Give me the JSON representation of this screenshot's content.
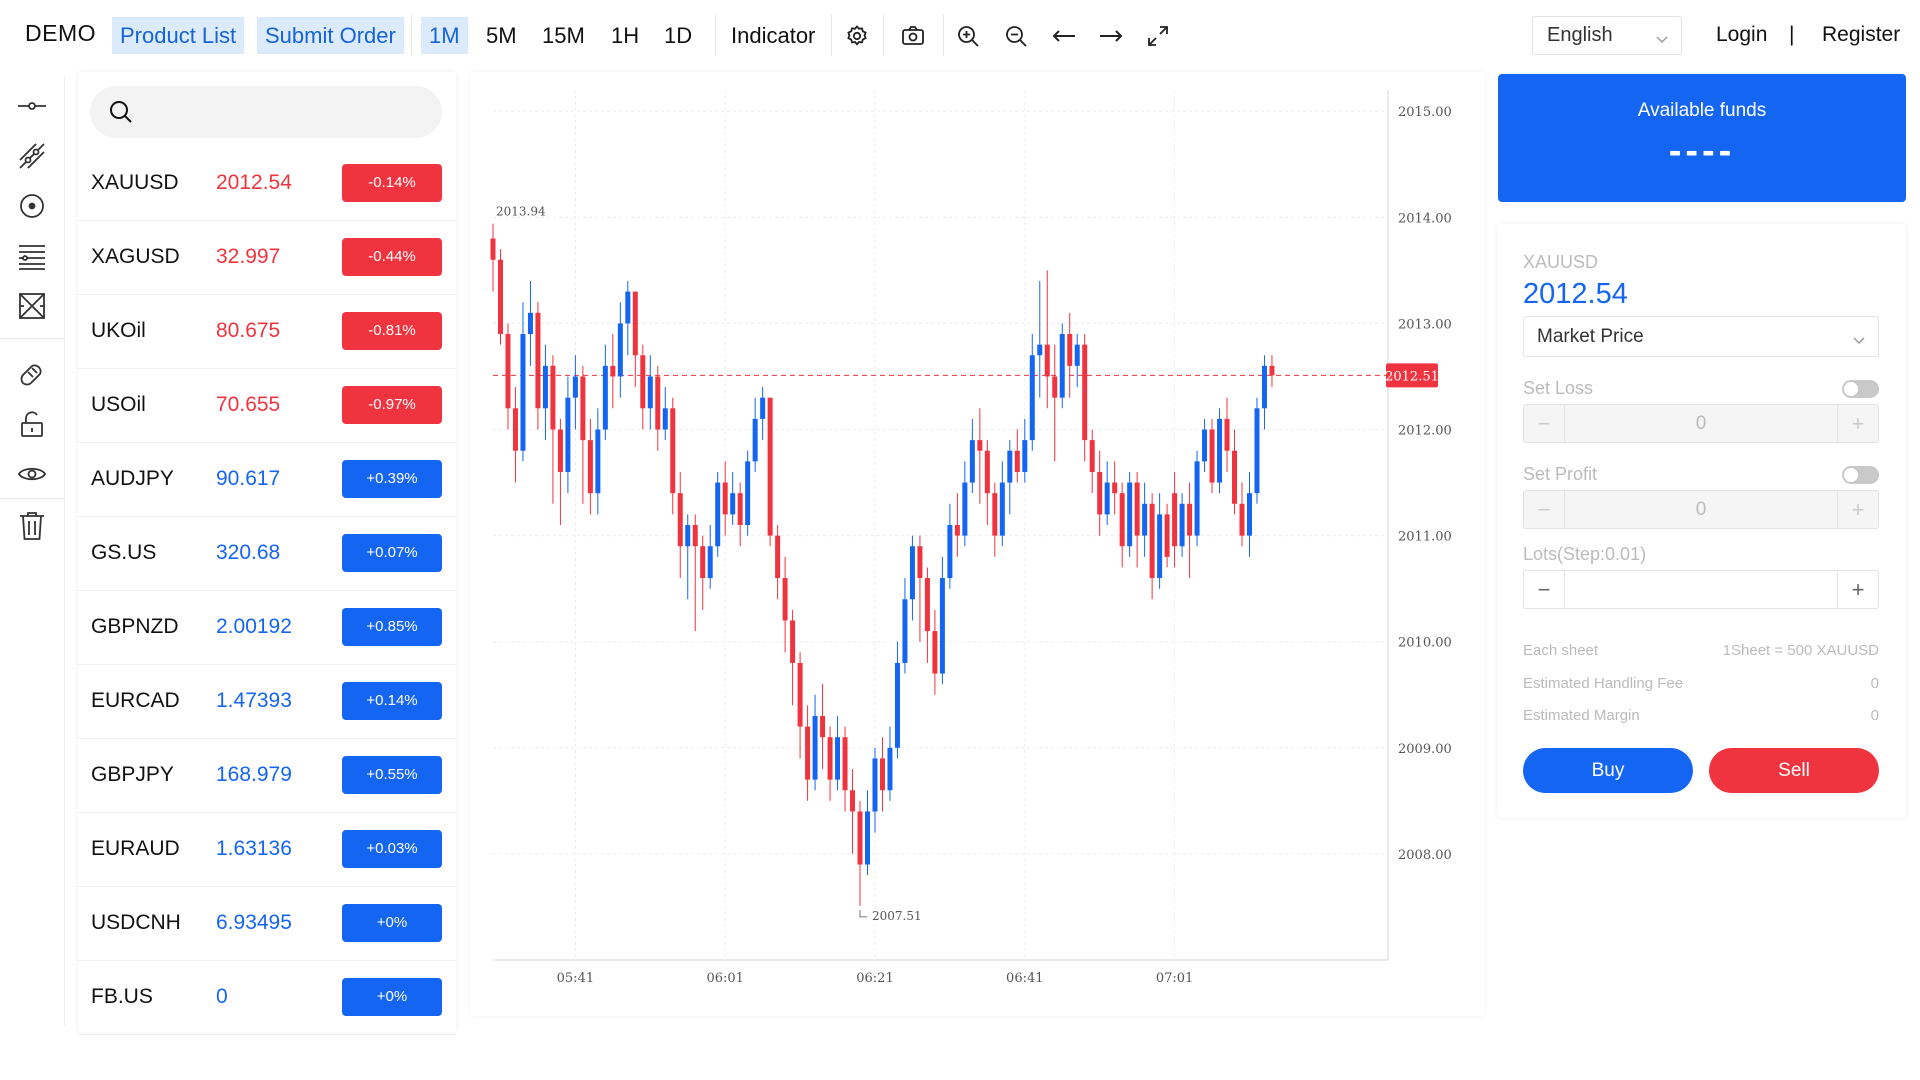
{
  "app": {
    "logo": "DEMO"
  },
  "toolbar": {
    "product_list": "Product List",
    "submit_order": "Submit Order",
    "intervals": [
      "1M",
      "5M",
      "15M",
      "1H",
      "1D"
    ],
    "active_interval": "1M",
    "indicator": "Indicator"
  },
  "header": {
    "language": "English",
    "login": "Login",
    "separator": "|",
    "register": "Register"
  },
  "products": [
    {
      "symbol": "XAUUSD",
      "price": "2012.54",
      "change": "-0.14%",
      "dir": "down"
    },
    {
      "symbol": "XAGUSD",
      "price": "32.997",
      "change": "-0.44%",
      "dir": "down"
    },
    {
      "symbol": "UKOil",
      "price": "80.675",
      "change": "-0.81%",
      "dir": "down"
    },
    {
      "symbol": "USOil",
      "price": "70.655",
      "change": "-0.97%",
      "dir": "down"
    },
    {
      "symbol": "AUDJPY",
      "price": "90.617",
      "change": "+0.39%",
      "dir": "up"
    },
    {
      "symbol": "GS.US",
      "price": "320.68",
      "change": "+0.07%",
      "dir": "up"
    },
    {
      "symbol": "GBPNZD",
      "price": "2.00192",
      "change": "+0.85%",
      "dir": "up"
    },
    {
      "symbol": "EURCAD",
      "price": "1.47393",
      "change": "+0.14%",
      "dir": "up"
    },
    {
      "symbol": "GBPJPY",
      "price": "168.979",
      "change": "+0.55%",
      "dir": "up"
    },
    {
      "symbol": "EURAUD",
      "price": "1.63136",
      "change": "+0.03%",
      "dir": "up"
    },
    {
      "symbol": "USDCNH",
      "price": "6.93495",
      "change": "+0%",
      "dir": "up"
    },
    {
      "symbol": "FB.US",
      "price": "0",
      "change": "+0%",
      "dir": "up"
    }
  ],
  "colors": {
    "up": "#1565f3",
    "down": "#f0343f",
    "accent": "#1565f3"
  },
  "chart_data": {
    "type": "candlestick",
    "ylim": [
      2007,
      2015.2
    ],
    "y_ticks": [
      "2015.00",
      "2014.00",
      "2013.00",
      "2012.00",
      "2011.00",
      "2010.00",
      "2009.00",
      "2008.00"
    ],
    "x_ticks": [
      "05:41",
      "06:01",
      "06:21",
      "06:41",
      "07:01"
    ],
    "x_tick_index": [
      11,
      31,
      51,
      71,
      91
    ],
    "last_price_label": "2012.51",
    "last_price": 2012.51,
    "high_label": "2013.94",
    "low_label": "2007.51",
    "candles": [
      [
        2013.8,
        2013.6,
        2013.94,
        2013.3
      ],
      [
        2013.6,
        2012.9,
        2013.7,
        2012.8
      ],
      [
        2012.9,
        2012.2,
        2013.0,
        2012.0
      ],
      [
        2012.2,
        2011.8,
        2012.4,
        2011.5
      ],
      [
        2011.8,
        2012.9,
        2013.2,
        2011.7
      ],
      [
        2012.9,
        2013.1,
        2013.4,
        2012.6
      ],
      [
        2013.1,
        2012.2,
        2013.2,
        2012.0
      ],
      [
        2012.2,
        2012.6,
        2012.8,
        2011.9
      ],
      [
        2012.6,
        2012.0,
        2012.7,
        2011.3
      ],
      [
        2012.0,
        2011.6,
        2012.1,
        2011.1
      ],
      [
        2011.6,
        2012.3,
        2012.5,
        2011.4
      ],
      [
        2012.3,
        2012.5,
        2012.7,
        2012.0
      ],
      [
        2012.5,
        2011.9,
        2012.6,
        2011.3
      ],
      [
        2011.9,
        2011.4,
        2012.1,
        2011.2
      ],
      [
        2011.4,
        2012.0,
        2012.2,
        2011.2
      ],
      [
        2012.0,
        2012.6,
        2012.8,
        2011.9
      ],
      [
        2012.6,
        2012.5,
        2012.9,
        2012.2
      ],
      [
        2012.5,
        2013.0,
        2013.2,
        2012.3
      ],
      [
        2013.0,
        2013.3,
        2013.4,
        2012.7
      ],
      [
        2013.3,
        2012.7,
        2013.3,
        2012.4
      ],
      [
        2012.7,
        2012.2,
        2012.8,
        2012.0
      ],
      [
        2012.2,
        2012.5,
        2012.7,
        2012.0
      ],
      [
        2012.5,
        2012.0,
        2012.6,
        2011.8
      ],
      [
        2012.0,
        2012.2,
        2012.4,
        2011.9
      ],
      [
        2012.2,
        2011.4,
        2012.3,
        2011.2
      ],
      [
        2011.4,
        2010.9,
        2011.6,
        2010.6
      ],
      [
        2010.9,
        2011.1,
        2011.2,
        2010.4
      ],
      [
        2011.1,
        2010.9,
        2011.2,
        2010.1
      ],
      [
        2010.9,
        2010.6,
        2011.0,
        2010.3
      ],
      [
        2010.6,
        2010.9,
        2011.1,
        2010.5
      ],
      [
        2010.9,
        2011.5,
        2011.6,
        2010.8
      ],
      [
        2011.5,
        2011.2,
        2011.7,
        2011.0
      ],
      [
        2011.2,
        2011.4,
        2011.6,
        2011.1
      ],
      [
        2011.4,
        2011.1,
        2011.5,
        2010.9
      ],
      [
        2011.1,
        2011.7,
        2011.8,
        2011.0
      ],
      [
        2011.7,
        2012.1,
        2012.3,
        2011.6
      ],
      [
        2012.1,
        2012.3,
        2012.4,
        2011.9
      ],
      [
        2012.3,
        2011.0,
        2012.3,
        2010.9
      ],
      [
        2011.0,
        2010.6,
        2011.1,
        2010.4
      ],
      [
        2010.6,
        2010.2,
        2010.8,
        2009.9
      ],
      [
        2010.2,
        2009.8,
        2010.3,
        2009.4
      ],
      [
        2009.8,
        2009.2,
        2009.9,
        2008.9
      ],
      [
        2009.2,
        2008.7,
        2009.4,
        2008.5
      ],
      [
        2008.7,
        2009.3,
        2009.5,
        2008.6
      ],
      [
        2009.3,
        2009.1,
        2009.6,
        2008.8
      ],
      [
        2009.1,
        2008.7,
        2009.2,
        2008.5
      ],
      [
        2008.7,
        2009.1,
        2009.3,
        2008.6
      ],
      [
        2009.1,
        2008.6,
        2009.2,
        2008.4
      ],
      [
        2008.6,
        2008.4,
        2008.8,
        2008.0
      ],
      [
        2008.4,
        2007.9,
        2008.5,
        2007.51
      ],
      [
        2007.9,
        2008.4,
        2008.6,
        2007.8
      ],
      [
        2008.4,
        2008.9,
        2009.0,
        2008.2
      ],
      [
        2008.9,
        2008.6,
        2009.1,
        2008.4
      ],
      [
        2008.6,
        2009.0,
        2009.2,
        2008.5
      ],
      [
        2009.0,
        2009.8,
        2010.0,
        2008.9
      ],
      [
        2009.8,
        2010.4,
        2010.6,
        2009.7
      ],
      [
        2010.4,
        2010.9,
        2011.0,
        2010.2
      ],
      [
        2010.9,
        2010.6,
        2011.0,
        2010.0
      ],
      [
        2010.6,
        2010.1,
        2010.7,
        2009.8
      ],
      [
        2010.1,
        2009.7,
        2010.3,
        2009.5
      ],
      [
        2009.7,
        2010.6,
        2010.8,
        2009.6
      ],
      [
        2010.6,
        2011.1,
        2011.3,
        2010.5
      ],
      [
        2011.1,
        2011.0,
        2011.4,
        2010.8
      ],
      [
        2011.0,
        2011.5,
        2011.7,
        2010.9
      ],
      [
        2011.5,
        2011.9,
        2012.1,
        2011.4
      ],
      [
        2011.9,
        2011.8,
        2012.2,
        2011.3
      ],
      [
        2011.8,
        2011.4,
        2011.9,
        2011.1
      ],
      [
        2011.4,
        2011.0,
        2011.5,
        2010.8
      ],
      [
        2011.0,
        2011.5,
        2011.7,
        2010.9
      ],
      [
        2011.5,
        2011.8,
        2011.9,
        2011.2
      ],
      [
        2011.8,
        2011.6,
        2012.0,
        2011.5
      ],
      [
        2011.6,
        2011.9,
        2012.1,
        2011.5
      ],
      [
        2011.9,
        2012.7,
        2012.9,
        2011.8
      ],
      [
        2012.7,
        2012.8,
        2013.4,
        2012.3
      ],
      [
        2012.8,
        2012.5,
        2013.5,
        2012.2
      ],
      [
        2012.5,
        2012.3,
        2012.8,
        2011.7
      ],
      [
        2012.3,
        2012.9,
        2013.0,
        2012.2
      ],
      [
        2012.9,
        2012.6,
        2013.1,
        2012.3
      ],
      [
        2012.6,
        2012.8,
        2012.9,
        2012.4
      ],
      [
        2012.8,
        2011.9,
        2012.9,
        2011.7
      ],
      [
        2011.9,
        2011.6,
        2012.0,
        2011.4
      ],
      [
        2011.6,
        2011.2,
        2011.8,
        2011.0
      ],
      [
        2011.2,
        2011.5,
        2011.7,
        2011.1
      ],
      [
        2011.5,
        2011.4,
        2011.7,
        2011.2
      ],
      [
        2011.4,
        2010.9,
        2011.5,
        2010.7
      ],
      [
        2010.9,
        2011.5,
        2011.6,
        2010.8
      ],
      [
        2011.5,
        2011.0,
        2011.6,
        2010.7
      ],
      [
        2011.0,
        2011.3,
        2011.5,
        2010.8
      ],
      [
        2011.3,
        2010.6,
        2011.4,
        2010.4
      ],
      [
        2010.6,
        2011.2,
        2011.4,
        2010.5
      ],
      [
        2011.2,
        2010.8,
        2011.3,
        2010.7
      ],
      [
        2011.4,
        2010.9,
        2011.6,
        2010.7
      ],
      [
        2010.9,
        2011.3,
        2011.4,
        2010.8
      ],
      [
        2011.3,
        2011.0,
        2011.5,
        2010.6
      ],
      [
        2011.0,
        2011.7,
        2011.8,
        2010.9
      ],
      [
        2011.7,
        2012.0,
        2012.1,
        2011.6
      ],
      [
        2012.0,
        2011.5,
        2012.1,
        2011.4
      ],
      [
        2011.5,
        2012.1,
        2012.2,
        2011.4
      ],
      [
        2012.1,
        2011.8,
        2012.3,
        2011.6
      ],
      [
        2011.8,
        2011.3,
        2012.0,
        2011.2
      ],
      [
        2011.3,
        2011.0,
        2011.5,
        2010.9
      ],
      [
        2011.0,
        2011.4,
        2011.6,
        2010.8
      ],
      [
        2011.4,
        2012.2,
        2012.3,
        2011.3
      ],
      [
        2012.2,
        2012.6,
        2012.7,
        2012.0
      ],
      [
        2012.6,
        2012.51,
        2012.7,
        2012.4
      ]
    ]
  },
  "order": {
    "funds_label": "Available funds",
    "funds_value": "----",
    "symbol": "XAUUSD",
    "price": "2012.54",
    "order_type": "Market Price",
    "set_loss_label": "Set Loss",
    "set_loss_value": "0",
    "set_profit_label": "Set Profit",
    "set_profit_value": "0",
    "lots_label": "Lots(Step:0.01)",
    "lots_value": "",
    "each_sheet_label": "Each sheet",
    "each_sheet_value": "1Sheet = 500 XAUUSD",
    "fee_label": "Estimated Handling Fee",
    "fee_value": "0",
    "margin_label": "Estimated Margin",
    "margin_value": "0",
    "buy": "Buy",
    "sell": "Sell"
  }
}
